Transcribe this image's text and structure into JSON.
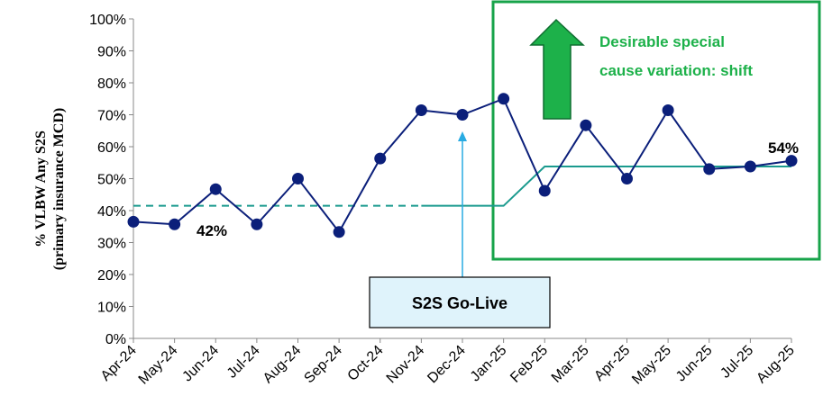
{
  "chart_data": {
    "type": "line",
    "ylabel_lines": [
      "% VLBW Any S2S",
      "(primary insurance MCD)"
    ],
    "ylim": [
      0,
      100
    ],
    "y_ticks": [
      "0%",
      "10%",
      "20%",
      "30%",
      "40%",
      "50%",
      "60%",
      "70%",
      "80%",
      "90%",
      "100%"
    ],
    "categories": [
      "Apr-24",
      "May-24",
      "Jun-24",
      "Jul-24",
      "Aug-24",
      "Sep-24",
      "Oct-24",
      "Nov-24",
      "Dec-24",
      "Jan-25",
      "Feb-25",
      "Mar-25",
      "Apr-25",
      "May-25",
      "Jun-25",
      "Jul-25",
      "Aug-25"
    ],
    "series": [
      {
        "values": [
          36.5,
          35.7,
          46.7,
          35.7,
          50.0,
          33.3,
          56.3,
          71.4,
          70.0,
          75.0,
          46.2,
          66.7,
          50.0,
          71.4,
          53.0,
          53.8,
          55.6
        ],
        "color": "#0b1f7a"
      }
    ],
    "baseline": {
      "value": 41.5,
      "from_category": "Apr-24",
      "to_category": "Jan-25",
      "style": "dashed",
      "color": "#1a9a8e"
    },
    "centerline_steps": [
      {
        "from_category": "Nov-24",
        "to_category": "Jan-25",
        "value": 41.5
      },
      {
        "from_category": "Feb-25",
        "to_category": "Aug-25",
        "value": 53.8
      }
    ],
    "centerline_color": "#1a9a8e",
    "labels": {
      "baseline": "42%",
      "shift": "54%"
    },
    "annotations": {
      "go_live": "S2S Go-Live",
      "go_live_at": "Dec-24",
      "shift_text": [
        "Desirable special",
        "cause variation: shift"
      ],
      "shift_box_color": "#17a34a",
      "arrow_color": "#1db14a"
    },
    "grid": false
  }
}
